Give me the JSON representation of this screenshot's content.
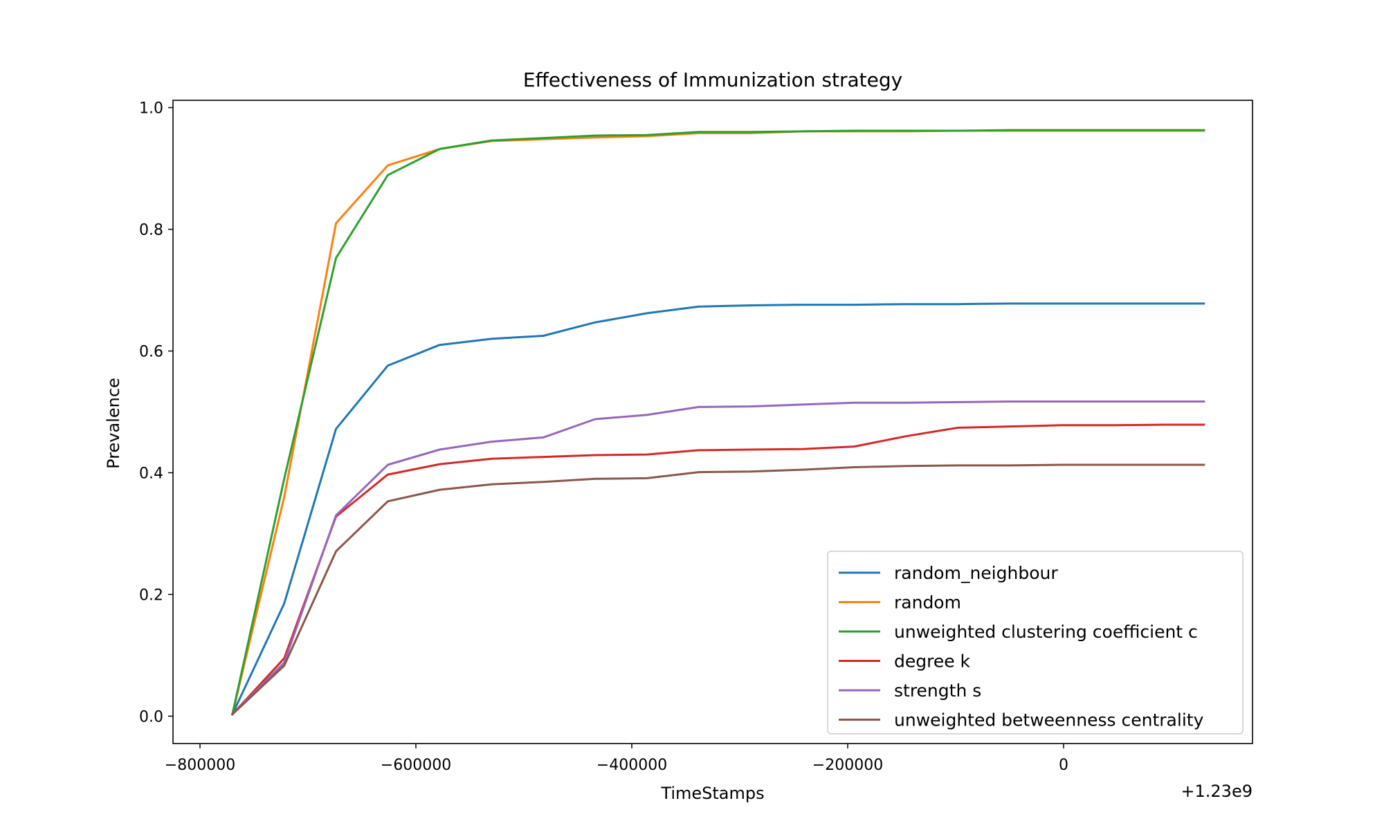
{
  "chart_data": {
    "type": "line",
    "title": "Effectiveness of Immunization strategy",
    "xlabel": "TimeStamps",
    "ylabel": "Prevalence",
    "x_offset_label": "+1.23e9",
    "xlim": [
      -825000,
      175000
    ],
    "ylim": [
      -0.045,
      1.012
    ],
    "xticks": [
      -800000,
      -600000,
      -400000,
      -200000,
      0
    ],
    "xtick_labels": [
      "−800000",
      "−600000",
      "−400000",
      "−200000",
      "0"
    ],
    "yticks": [
      0.0,
      0.2,
      0.4,
      0.6,
      0.8,
      1.0
    ],
    "ytick_labels": [
      "0.0",
      "0.2",
      "0.4",
      "0.6",
      "0.8",
      "1.0"
    ],
    "grid": false,
    "legend_position": "lower-right",
    "x": [
      -770000,
      -722000,
      -674000,
      -626000,
      -578000,
      -530000,
      -482000,
      -434000,
      -386000,
      -338000,
      -290000,
      -242000,
      -194000,
      -146000,
      -98000,
      -50000,
      -2000,
      46000,
      94000,
      130000
    ],
    "series": [
      {
        "name": "random_neighbour",
        "color": "#1f77b4",
        "values": [
          0.003,
          0.185,
          0.472,
          0.576,
          0.61,
          0.62,
          0.625,
          0.647,
          0.662,
          0.673,
          0.675,
          0.676,
          0.676,
          0.677,
          0.677,
          0.678,
          0.678,
          0.678,
          0.678,
          0.678
        ]
      },
      {
        "name": "random",
        "color": "#ff7f0e",
        "values": [
          0.003,
          0.36,
          0.81,
          0.905,
          0.932,
          0.945,
          0.948,
          0.951,
          0.953,
          0.958,
          0.958,
          0.961,
          0.961,
          0.961,
          0.962,
          0.962,
          0.962,
          0.962,
          0.962,
          0.962
        ]
      },
      {
        "name": "unweighted clustering coefficient c",
        "color": "#2ca02c",
        "values": [
          0.003,
          0.39,
          0.753,
          0.889,
          0.932,
          0.946,
          0.95,
          0.954,
          0.955,
          0.96,
          0.96,
          0.961,
          0.962,
          0.962,
          0.962,
          0.963,
          0.963,
          0.963,
          0.963,
          0.963
        ]
      },
      {
        "name": "degree k",
        "color": "#d62728",
        "values": [
          0.003,
          0.095,
          0.328,
          0.397,
          0.414,
          0.423,
          0.426,
          0.429,
          0.43,
          0.437,
          0.438,
          0.439,
          0.443,
          0.46,
          0.474,
          0.476,
          0.478,
          0.478,
          0.479,
          0.479
        ]
      },
      {
        "name": "strength s",
        "color": "#9467bd",
        "values": [
          0.003,
          0.088,
          0.33,
          0.413,
          0.438,
          0.451,
          0.458,
          0.488,
          0.495,
          0.508,
          0.509,
          0.512,
          0.515,
          0.515,
          0.516,
          0.517,
          0.517,
          0.517,
          0.517,
          0.517
        ]
      },
      {
        "name": "unweighted betweenness centrality",
        "color": "#8c564b",
        "values": [
          0.003,
          0.083,
          0.271,
          0.353,
          0.372,
          0.381,
          0.385,
          0.39,
          0.391,
          0.401,
          0.402,
          0.405,
          0.409,
          0.411,
          0.412,
          0.412,
          0.413,
          0.413,
          0.413,
          0.413
        ]
      }
    ]
  }
}
